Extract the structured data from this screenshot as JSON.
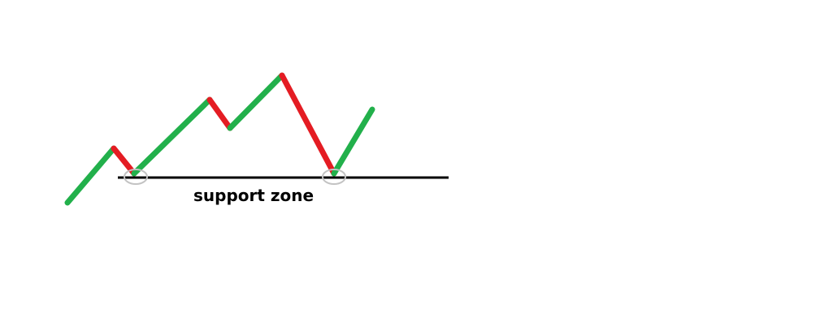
{
  "diagram": {
    "label": "support zone",
    "colors": {
      "up": "#22b04b",
      "down": "#e41c23",
      "support_line": "#000000",
      "touch_marker": "#c3c3c3",
      "background": "#ffffff"
    }
  }
}
